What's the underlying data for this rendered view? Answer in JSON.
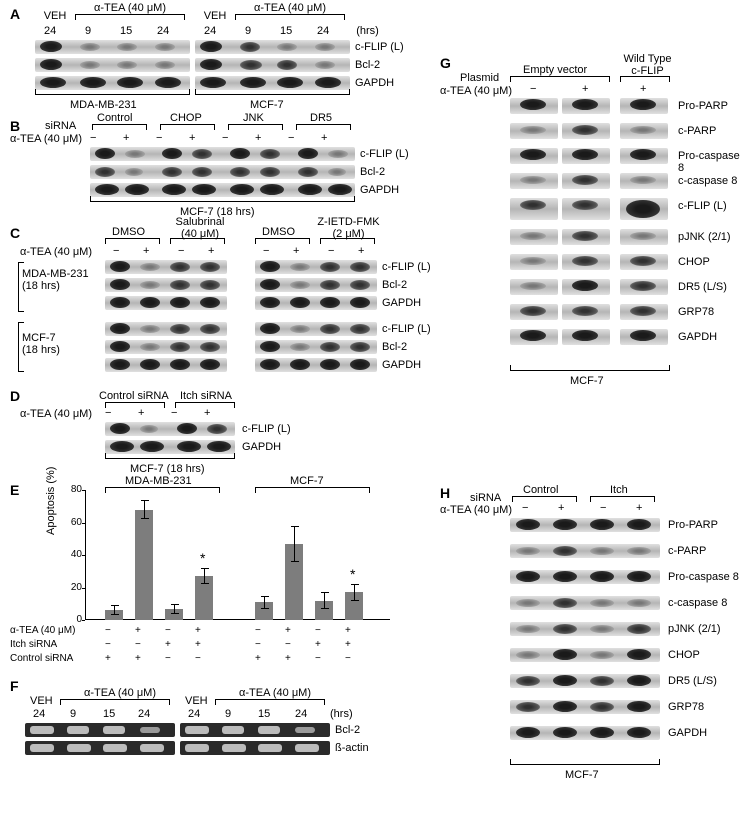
{
  "panels": {
    "A": "A",
    "B": "B",
    "C": "C",
    "D": "D",
    "E": "E",
    "F": "F",
    "G": "G",
    "H": "H"
  },
  "treatments": {
    "veh": "VEH",
    "atea_40": "α-TEA (40 μM)",
    "hrs": "(hrs)",
    "h24": "24",
    "h9": "9",
    "h15": "15"
  },
  "proteins": {
    "cflipL": "c-FLIP (L)",
    "bcl2": "Bcl-2",
    "gapdh": "GAPDH",
    "proparp": "Pro-PARP",
    "cparp": "c-PARP",
    "procasp8": "Pro-caspase 8",
    "ccasp8": "c-caspase 8",
    "pjnk": "pJNK (2/1)",
    "chop": "CHOP",
    "dr5": "DR5 (L/S)",
    "grp78": "GRP78",
    "bactin": "ß-actin"
  },
  "cells": {
    "mda": "MDA-MB-231",
    "mcf7": "MCF-7",
    "mcf7_18": "MCF-7 (18 hrs)",
    "mda_18": "MDA-MB-231\n(18 hrs)",
    "mcf7_18s": "MCF-7\n(18 hrs)"
  },
  "sirna": {
    "label": "siRNA",
    "control": "Control",
    "chop": "CHOP",
    "jnk": "JNK",
    "dr5_s": "DR5",
    "itch": "Itch",
    "itch_sirna": "Itch siRNA",
    "control_sirna": "Control siRNA"
  },
  "inhibitors": {
    "dmso": "DMSO",
    "salubrinal": "Salubrinal\n(40 μM)",
    "zietd": "Z-IETD-FMK\n(2 μM)"
  },
  "plasmid": {
    "label": "Plasmid",
    "empty": "Empty vector",
    "wt": "Wild Type\nc-FLIP"
  },
  "signs": {
    "plus": "+",
    "minus": "−"
  },
  "chartE": {
    "ylabel": "Apoptosis (%)",
    "ymax": 80,
    "ystep": 20,
    "groups": [
      {
        "cell": "MDA-MB-231",
        "bars": [
          {
            "v": 6,
            "e": 3
          },
          {
            "v": 68,
            "e": 6,
            "star": false
          },
          {
            "v": 7,
            "e": 3
          },
          {
            "v": 27,
            "e": 5,
            "star": true
          }
        ]
      },
      {
        "cell": "MCF-7",
        "bars": [
          {
            "v": 11,
            "e": 4
          },
          {
            "v": 47,
            "e": 11
          },
          {
            "v": 12,
            "e": 5
          },
          {
            "v": 17,
            "e": 5,
            "star": true
          }
        ]
      }
    ],
    "rowlabels": [
      "α-TEA (40 μM)",
      "Itch siRNA",
      "Control siRNA"
    ],
    "matrix": [
      [
        "−",
        "+",
        "−",
        "+",
        "−",
        "+",
        "−",
        "+"
      ],
      [
        "−",
        "−",
        "+",
        "+",
        "−",
        "−",
        "+",
        "+"
      ],
      [
        "+",
        "+",
        "−",
        "−",
        "+",
        "+",
        "−",
        "−"
      ]
    ],
    "star": "*"
  },
  "colors": {
    "bg": "#ffffff",
    "bar": "#7d7d7d",
    "text": "#000000"
  }
}
